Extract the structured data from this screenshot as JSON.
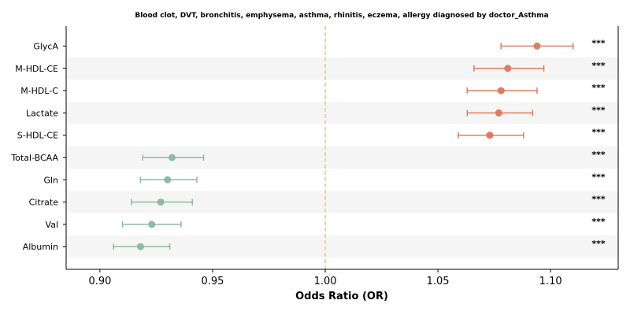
{
  "chart_data": {
    "type": "forest",
    "title": "Blood clot, DVT, bronchitis, emphysema, asthma, rhinitis, eczema, allergy diagnosed by doctor_Asthma",
    "xlabel": "Odds Ratio (OR)",
    "xlim": [
      0.885,
      1.13
    ],
    "xticks": [
      0.9,
      0.95,
      1.0,
      1.05,
      1.1
    ],
    "xtick_labels": [
      "0.90",
      "0.95",
      "1.00",
      "1.05",
      "1.10"
    ],
    "reference_line": 1.0,
    "reference_color": "#f2c47e",
    "colors": {
      "positive": "#e07b5f",
      "negative": "#8dbba0"
    },
    "grid": false,
    "rows": [
      {
        "label": "GlycA",
        "or": 1.094,
        "lo": 1.078,
        "hi": 1.11,
        "sig": "***",
        "direction": "positive"
      },
      {
        "label": "M-HDL-CE",
        "or": 1.081,
        "lo": 1.066,
        "hi": 1.097,
        "sig": "***",
        "direction": "positive"
      },
      {
        "label": "M-HDL-C",
        "or": 1.078,
        "lo": 1.063,
        "hi": 1.094,
        "sig": "***",
        "direction": "positive"
      },
      {
        "label": "Lactate",
        "or": 1.077,
        "lo": 1.063,
        "hi": 1.092,
        "sig": "***",
        "direction": "positive"
      },
      {
        "label": "S-HDL-CE",
        "or": 1.073,
        "lo": 1.059,
        "hi": 1.088,
        "sig": "***",
        "direction": "positive"
      },
      {
        "label": "Total-BCAA",
        "or": 0.932,
        "lo": 0.919,
        "hi": 0.946,
        "sig": "***",
        "direction": "negative"
      },
      {
        "label": "Gln",
        "or": 0.93,
        "lo": 0.918,
        "hi": 0.943,
        "sig": "***",
        "direction": "negative"
      },
      {
        "label": "Citrate",
        "or": 0.927,
        "lo": 0.914,
        "hi": 0.941,
        "sig": "***",
        "direction": "negative"
      },
      {
        "label": "Val",
        "or": 0.923,
        "lo": 0.91,
        "hi": 0.936,
        "sig": "***",
        "direction": "negative"
      },
      {
        "label": "Albumin",
        "or": 0.918,
        "lo": 0.906,
        "hi": 0.931,
        "sig": "***",
        "direction": "negative"
      }
    ]
  }
}
